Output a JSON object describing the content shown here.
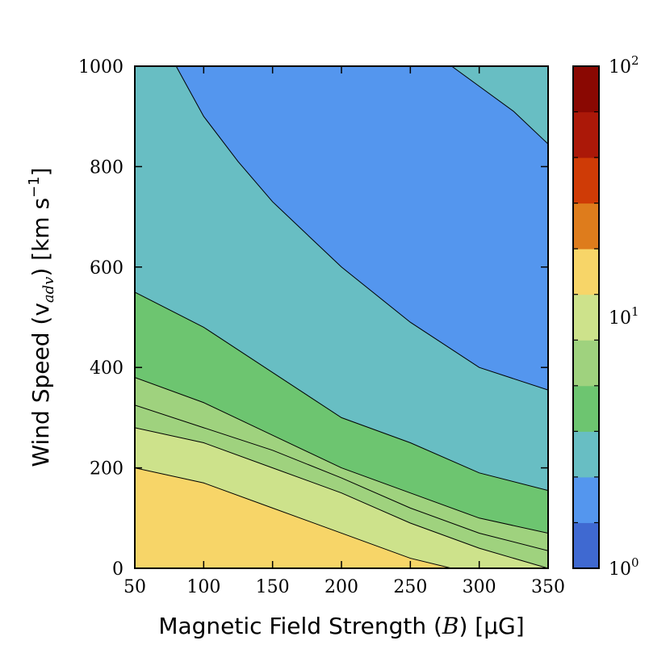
{
  "chart_data": {
    "type": "contour",
    "xlabel_prefix": "Magnetic Field Strength (",
    "xlabel_math": "B",
    "xlabel_suffix": ") [μG]",
    "ylabel_prefix": "Wind Speed (v",
    "ylabel_sub": "adv",
    "ylabel_suffix": ") [km s",
    "ylabel_sup": "−1",
    "ylabel_close": "]",
    "xlim": [
      50,
      350
    ],
    "ylim": [
      0,
      1000
    ],
    "xticks": [
      50,
      100,
      150,
      200,
      250,
      300,
      350
    ],
    "yticks": [
      0,
      200,
      400,
      600,
      800,
      1000
    ],
    "colorbar": {
      "scale": "log",
      "range": [
        1,
        100
      ],
      "tick_labels": [
        {
          "base": "10",
          "exp": "0",
          "value": 1
        },
        {
          "base": "10",
          "exp": "1",
          "value": 10
        },
        {
          "base": "10",
          "exp": "2",
          "value": 100
        }
      ],
      "level_colors": [
        "#3f69d1",
        "#5496ee",
        "#68bec3",
        "#6dc570",
        "#9fd27e",
        "#cde28b",
        "#f7d568",
        "#de7c1c",
        "#cf3b06",
        "#ab1808",
        "#8a0802"
      ]
    },
    "regions": [
      {
        "name": "level-6",
        "color": "#f7d568",
        "boundary": [
          [
            50,
            200
          ],
          [
            100,
            170
          ],
          [
            150,
            120
          ],
          [
            200,
            70
          ],
          [
            250,
            20
          ],
          [
            280,
            0
          ]
        ]
      },
      {
        "name": "level-5",
        "color": "#cde28b",
        "boundary": [
          [
            50,
            280
          ],
          [
            100,
            250
          ],
          [
            150,
            200
          ],
          [
            200,
            150
          ],
          [
            250,
            90
          ],
          [
            300,
            40
          ],
          [
            350,
            0
          ]
        ]
      },
      {
        "name": "level-4b",
        "color": "#9fd27e",
        "boundary": [
          [
            50,
            325
          ],
          [
            100,
            280
          ],
          [
            150,
            235
          ],
          [
            200,
            180
          ],
          [
            250,
            120
          ],
          [
            300,
            70
          ],
          [
            350,
            35
          ]
        ]
      },
      {
        "name": "level-4",
        "color": "#9fd27e",
        "boundary": [
          [
            50,
            380
          ],
          [
            100,
            330
          ],
          [
            150,
            265
          ],
          [
            200,
            200
          ],
          [
            250,
            150
          ],
          [
            300,
            100
          ],
          [
            350,
            70
          ]
        ]
      },
      {
        "name": "level-3",
        "color": "#6dc570",
        "boundary": [
          [
            50,
            550
          ],
          [
            100,
            480
          ],
          [
            150,
            390
          ],
          [
            200,
            300
          ],
          [
            250,
            250
          ],
          [
            300,
            190
          ],
          [
            350,
            155
          ]
        ]
      },
      {
        "name": "level-2",
        "color": "#68bec3",
        "boundary": [
          [
            80,
            1000
          ],
          [
            100,
            900
          ],
          [
            125,
            810
          ],
          [
            150,
            730
          ],
          [
            200,
            600
          ],
          [
            250,
            490
          ],
          [
            300,
            400
          ],
          [
            350,
            355
          ]
        ]
      },
      {
        "name": "level-1",
        "color": "#5496ee",
        "boundary": [
          [
            280,
            1000
          ],
          [
            300,
            960
          ],
          [
            325,
            910
          ],
          [
            350,
            845
          ]
        ]
      }
    ]
  }
}
